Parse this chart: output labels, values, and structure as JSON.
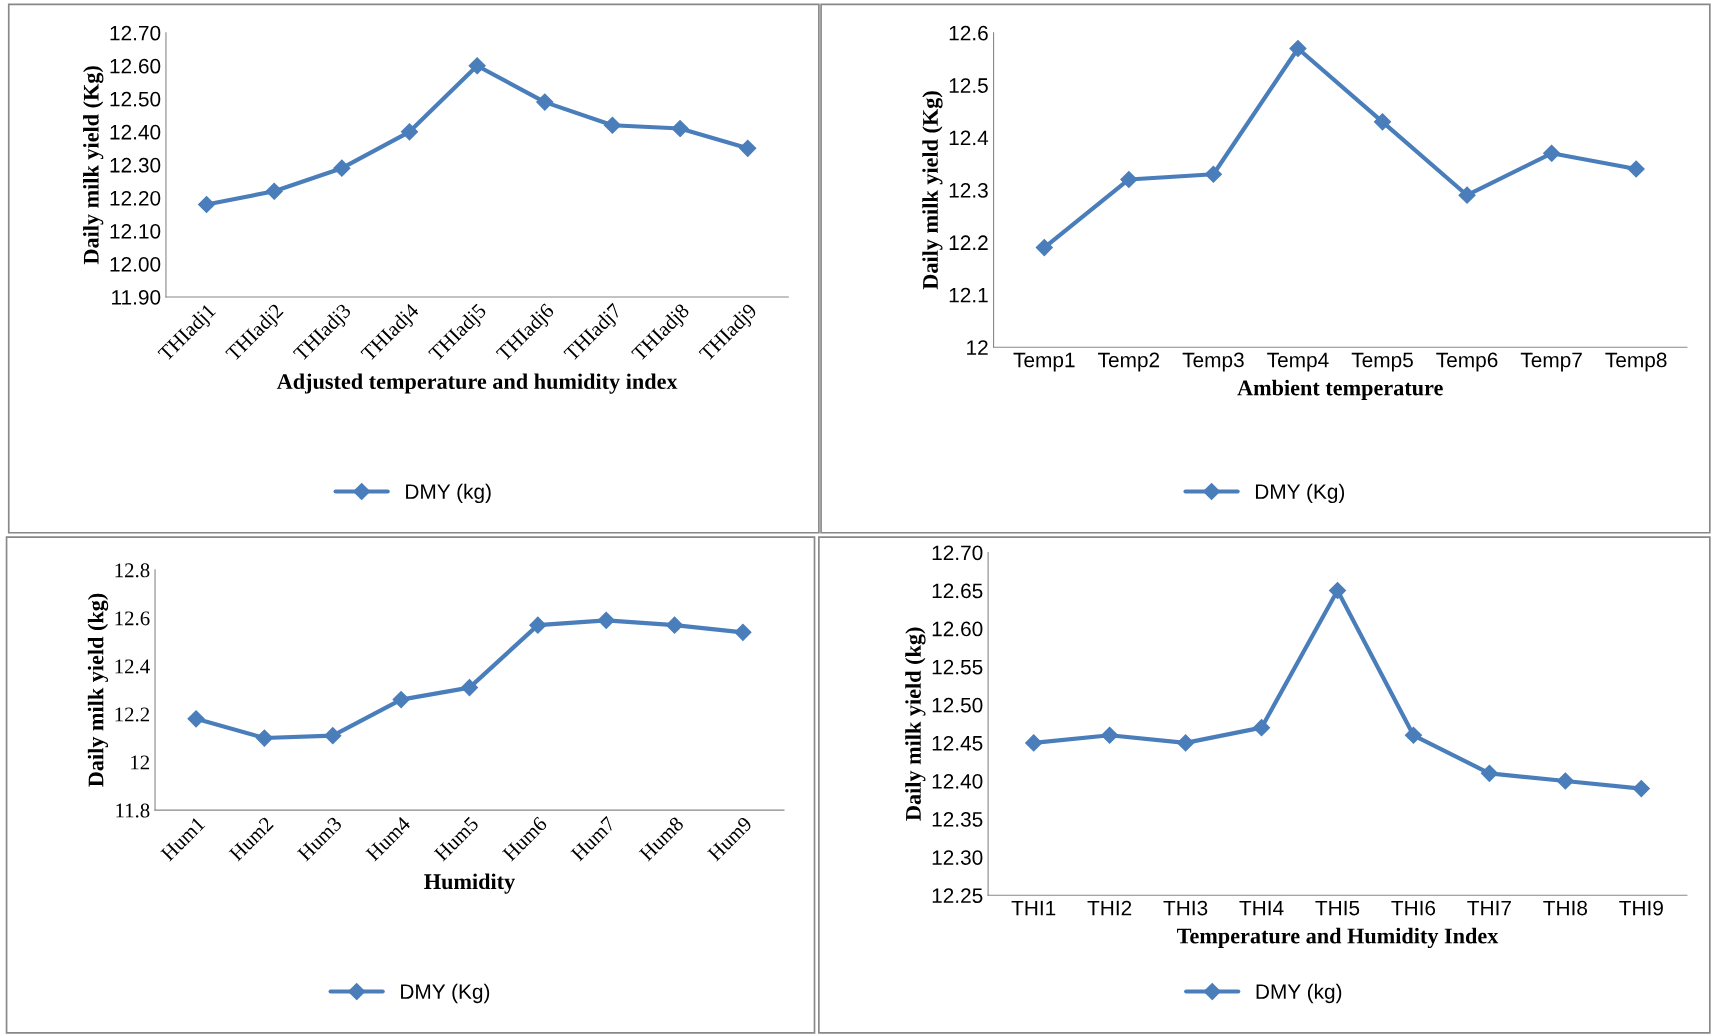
{
  "chart_data": [
    {
      "type": "line",
      "xlabel": "Adjusted temperature and humidity index",
      "ylabel": "Daily milk yield (Kg)",
      "categories": [
        "THIadj1",
        "THIadj2",
        "THIadj3",
        "THIadj4",
        "THIadj5",
        "THIadj6",
        "THIadj7",
        "THIadj8",
        "THIadj9"
      ],
      "series": [
        {
          "name": "DMY (kg)",
          "color": "#4a7ebb",
          "values": [
            12.18,
            12.22,
            12.29,
            12.4,
            12.6,
            12.49,
            12.42,
            12.41,
            12.35
          ]
        }
      ],
      "ylim": [
        11.9,
        12.7
      ],
      "yticks": [
        {
          "value": 11.9,
          "label": "11.90"
        },
        {
          "value": 12.0,
          "label": "12.00"
        },
        {
          "value": 12.1,
          "label": "12.10"
        },
        {
          "value": 12.2,
          "label": "12.20"
        },
        {
          "value": 12.3,
          "label": "12.30"
        },
        {
          "value": 12.4,
          "label": "12.40"
        },
        {
          "value": 12.5,
          "label": "12.50"
        },
        {
          "value": 12.6,
          "label": "12.60"
        },
        {
          "value": 12.7,
          "label": "12.70"
        }
      ],
      "marker": "diamond",
      "line_style": "solid",
      "legend": "bottom",
      "grid": false
    },
    {
      "type": "line",
      "xlabel": "Ambient temperature",
      "ylabel": "Daily milk yield (Kg)",
      "categories": [
        "Temp1",
        "Temp2",
        "Temp3",
        "Temp4",
        "Temp5",
        "Temp6",
        "Temp7",
        "Temp8"
      ],
      "series": [
        {
          "name": "DMY (Kg)",
          "color": "#4a7ebb",
          "values": [
            12.19,
            12.32,
            12.33,
            12.57,
            12.43,
            12.29,
            12.37,
            12.34
          ]
        }
      ],
      "ylim": [
        12,
        12.6
      ],
      "yticks": [
        12,
        12.1,
        12.2,
        12.3,
        12.4,
        12.5,
        12.6
      ],
      "marker": "diamond",
      "line_style": "solid",
      "legend": "bottom",
      "grid": false
    },
    {
      "type": "line",
      "xlabel": "Humidity",
      "ylabel": "Daily milk yield (kg)",
      "categories": [
        "Hum1",
        "Hum2",
        "Hum3",
        "Hum4",
        "Hum5",
        "Hum6",
        "Hum7",
        "Hum8",
        "Hum9"
      ],
      "series": [
        {
          "name": "DMY (Kg)",
          "color": "#4a7ebb",
          "values": [
            12.18,
            12.1,
            12.11,
            12.26,
            12.31,
            12.57,
            12.59,
            12.57,
            12.54
          ]
        }
      ],
      "ylim": [
        11.8,
        12.8
      ],
      "yticks": [
        11.8,
        12,
        12.2,
        12.4,
        12.6,
        12.8
      ],
      "marker": "diamond",
      "line_style": "solid",
      "legend": "bottom",
      "grid": false
    },
    {
      "type": "line",
      "xlabel": "Temperature and Humidity Index",
      "ylabel": "Daily milk yield (kg)",
      "categories": [
        "THI1",
        "THI2",
        "THI3",
        "THI4",
        "THI5",
        "THI6",
        "THI7",
        "THI8",
        "THI9"
      ],
      "series": [
        {
          "name": "DMY (kg)",
          "color": "#4a7ebb",
          "values": [
            12.45,
            12.46,
            12.45,
            12.47,
            12.65,
            12.46,
            12.41,
            12.4,
            12.39
          ]
        }
      ],
      "ylim": [
        12.25,
        12.7
      ],
      "yticks": [
        {
          "value": 12.25,
          "label": "12.25"
        },
        {
          "value": 12.3,
          "label": "12.30"
        },
        {
          "value": 12.35,
          "label": "12.35"
        },
        {
          "value": 12.4,
          "label": "12.40"
        },
        {
          "value": 12.45,
          "label": "12.45"
        },
        {
          "value": 12.5,
          "label": "12.50"
        },
        {
          "value": 12.55,
          "label": "12.55"
        },
        {
          "value": 12.6,
          "label": "12.60"
        },
        {
          "value": 12.65,
          "label": "12.65"
        },
        {
          "value": 12.7,
          "label": "12.70"
        }
      ],
      "marker": "diamond",
      "line_style": "solid",
      "legend": "bottom",
      "grid": false
    }
  ]
}
